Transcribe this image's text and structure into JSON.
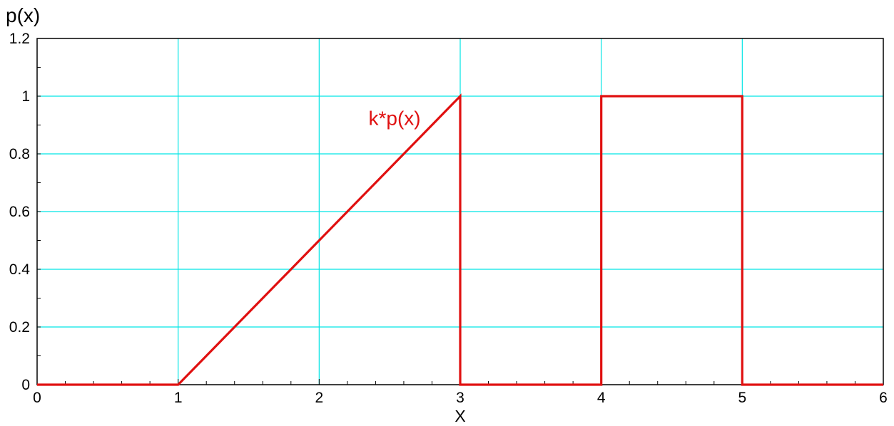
{
  "chart_data": {
    "type": "line",
    "title": "",
    "xlabel": "X",
    "ylabel": "p(x)",
    "xlim": [
      0,
      6
    ],
    "ylim": [
      0,
      1.2
    ],
    "x_ticks": [
      0,
      1,
      2,
      3,
      4,
      5,
      6
    ],
    "x_tick_labels": [
      "0",
      "1",
      "2",
      "3",
      "4",
      "5",
      "6"
    ],
    "y_ticks": [
      0,
      0.2,
      0.4,
      0.6,
      0.8,
      1,
      1.2
    ],
    "y_tick_labels": [
      "0",
      "0.2",
      "0.4",
      "0.6",
      "0.8",
      "1",
      "1.2"
    ],
    "grid": true,
    "grid_color": "#00e5e5",
    "series": [
      {
        "color": "#e01010",
        "x": [
          0,
          1,
          3,
          3,
          4,
          4,
          5,
          5,
          6
        ],
        "y": [
          0,
          0,
          1,
          0,
          0,
          1,
          1,
          0,
          0
        ]
      }
    ],
    "annotations": [
      {
        "text": "k*p(x)",
        "x": 2.35,
        "y": 0.9,
        "color": "#e01010"
      }
    ]
  }
}
